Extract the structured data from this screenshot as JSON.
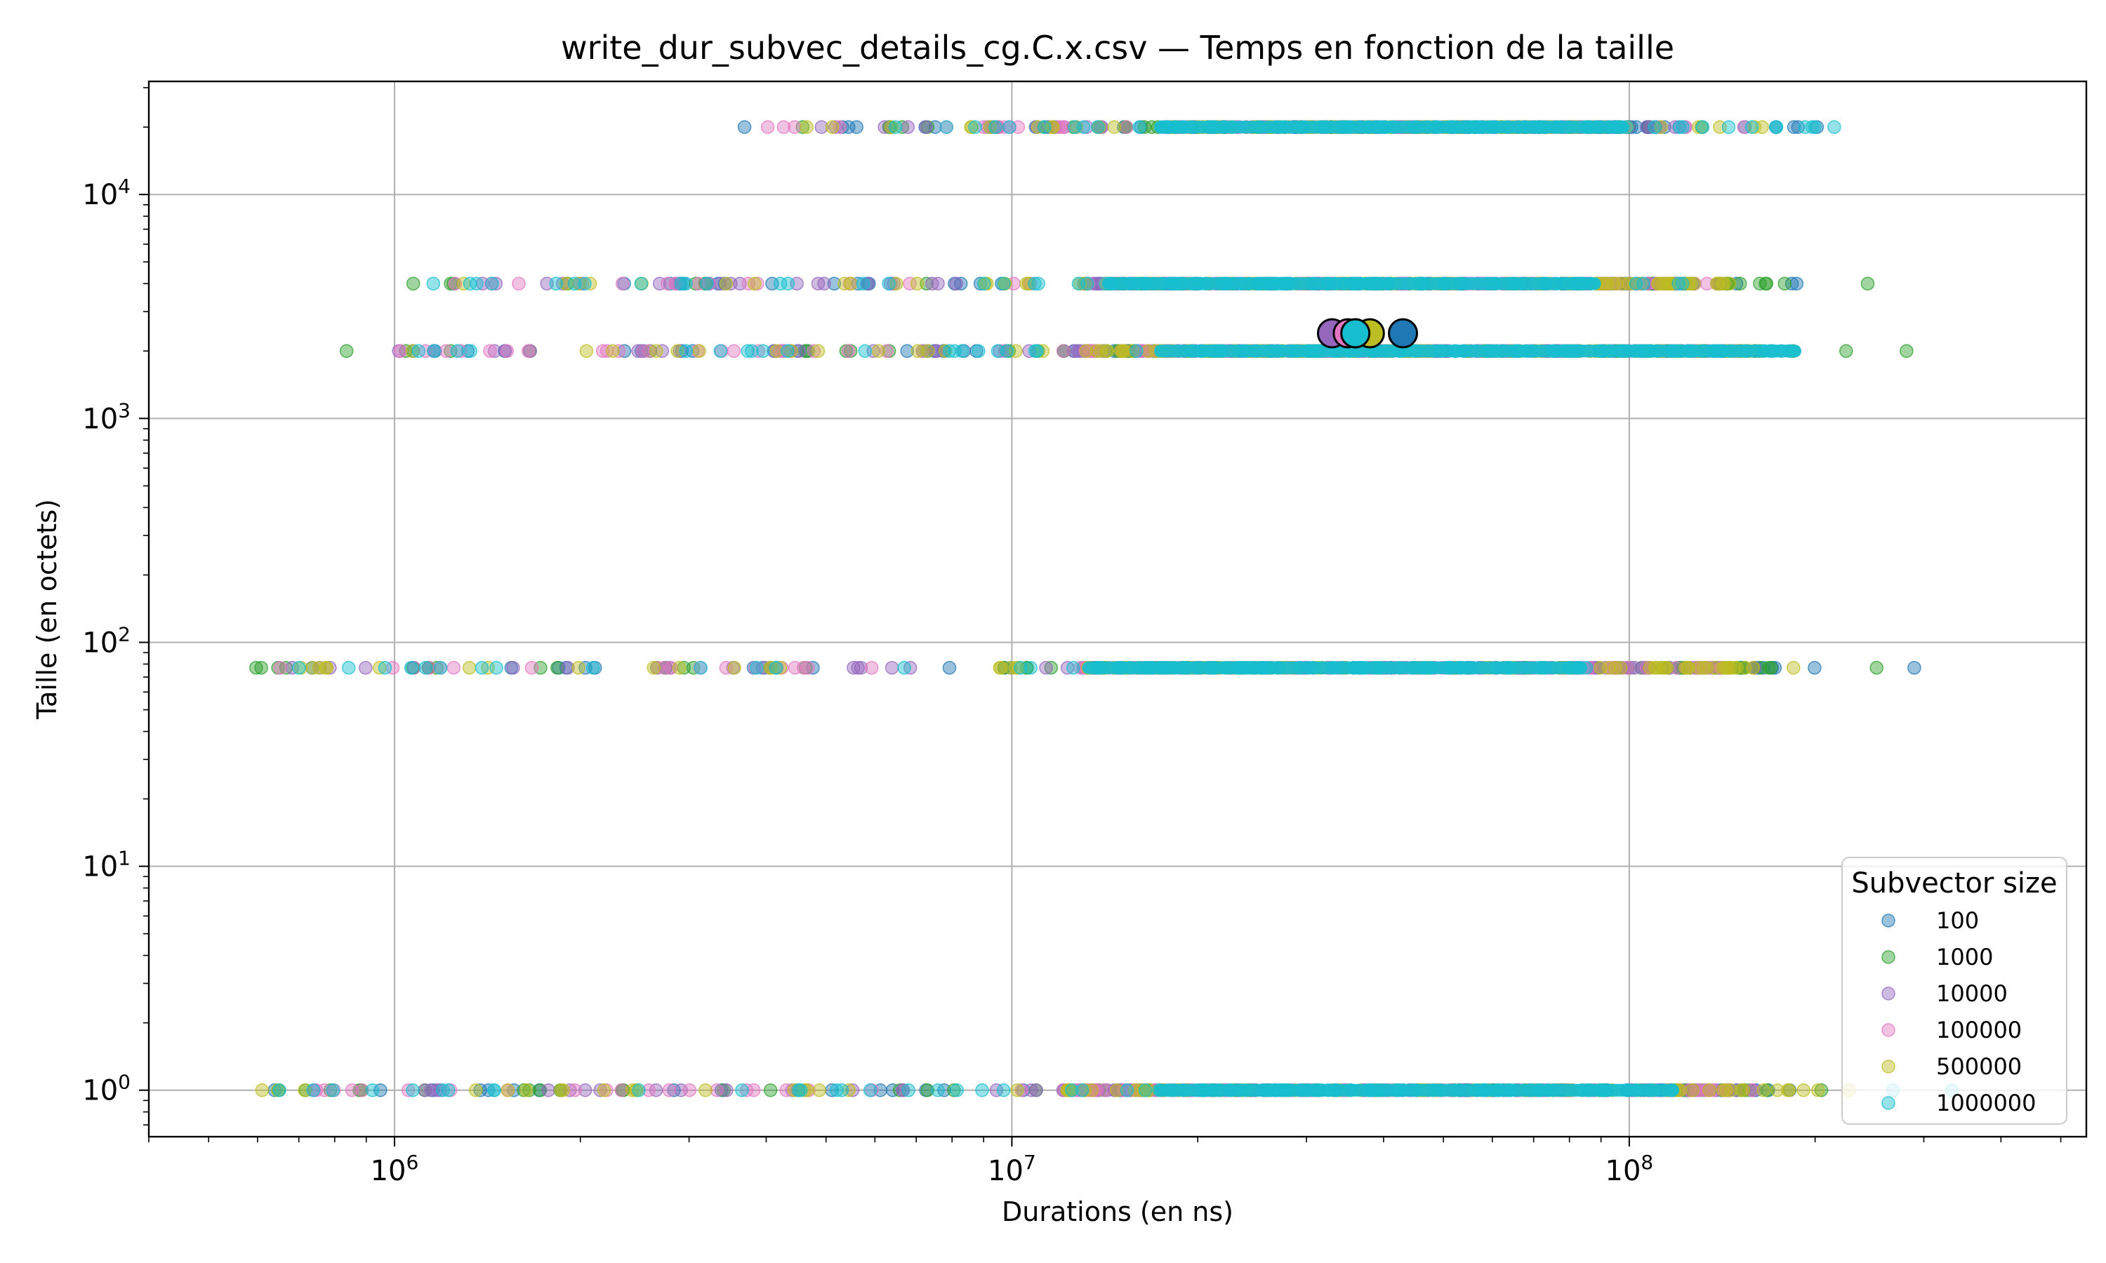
{
  "chart_data": {
    "type": "scatter",
    "title": "write_dur_subvec_details_cg.C.x.csv — Temps en fonction de la taille",
    "xlabel": "Durations (en ns)",
    "ylabel": "Taille (en octets)",
    "xscale": "log",
    "yscale": "log",
    "xlim": [
      400000,
      550000000
    ],
    "ylim": [
      0.62,
      32000
    ],
    "x_tick_labels": [
      {
        "value": 1000000,
        "base": "10",
        "exp": "6"
      },
      {
        "value": 10000000,
        "base": "10",
        "exp": "7"
      },
      {
        "value": 100000000,
        "base": "10",
        "exp": "8"
      }
    ],
    "y_tick_labels": [
      {
        "value": 1,
        "base": "10",
        "exp": "0"
      },
      {
        "value": 10,
        "base": "10",
        "exp": "1"
      },
      {
        "value": 100,
        "base": "10",
        "exp": "2"
      },
      {
        "value": 1000,
        "base": "10",
        "exp": "3"
      },
      {
        "value": 10000,
        "base": "10",
        "exp": "4"
      }
    ],
    "grid": true,
    "legend": {
      "title": "Subvector size",
      "position": "lower-right"
    },
    "series": [
      {
        "name": "100",
        "color": "#1f77b4",
        "bands": [
          {
            "y": 20000,
            "x_range": [
              3000000,
              220000000
            ],
            "dense_range": [
              18000000,
              110000000
            ]
          },
          {
            "y": 4000,
            "x_range": [
              1100000,
              200000000
            ],
            "dense_range": [
              13000000,
              150000000
            ]
          },
          {
            "y": 2000,
            "x_range": [
              1000000,
              190000000
            ],
            "dense_range": [
              12000000,
              160000000
            ]
          },
          {
            "y": 77,
            "x_range": [
              620000,
              390000000
            ],
            "dense_range": [
              13000000,
              170000000
            ]
          },
          {
            "y": 1,
            "x_range": [
              620000,
              300000000
            ],
            "dense_range": [
              12000000,
              170000000
            ]
          }
        ],
        "mean": {
          "x": 43000000,
          "y": 2400
        }
      },
      {
        "name": "1000",
        "color": "#2ca02c",
        "bands": [
          {
            "y": 20000,
            "x_range": [
              4500000,
              160000000
            ],
            "dense_range": [
              18000000,
              100000000
            ]
          },
          {
            "y": 4000,
            "x_range": [
              950000,
              260000000
            ],
            "dense_range": [
              13000000,
              150000000
            ]
          },
          {
            "y": 2000,
            "x_range": [
              800000,
              290000000
            ],
            "dense_range": [
              12000000,
              160000000
            ]
          },
          {
            "y": 77,
            "x_range": [
              530000,
              280000000
            ],
            "dense_range": [
              13000000,
              170000000
            ]
          },
          {
            "y": 1,
            "x_range": [
              620000,
              230000000
            ],
            "dense_range": [
              12000000,
              170000000
            ]
          }
        ],
        "mean": {
          "x": 36000000,
          "y": 2400
        }
      },
      {
        "name": "10000",
        "color": "#9467bd",
        "bands": [
          {
            "y": 20000,
            "x_range": [
              4500000,
              150000000
            ],
            "dense_range": [
              18000000,
              100000000
            ]
          },
          {
            "y": 4000,
            "x_range": [
              1100000,
              150000000
            ],
            "dense_range": [
              13000000,
              140000000
            ]
          },
          {
            "y": 2000,
            "x_range": [
              1000000,
              150000000
            ],
            "dense_range": [
              12000000,
              150000000
            ]
          },
          {
            "y": 77,
            "x_range": [
              650000,
              160000000
            ],
            "dense_range": [
              13000000,
              150000000
            ]
          },
          {
            "y": 1,
            "x_range": [
              600000,
              160000000
            ],
            "dense_range": [
              12000000,
              150000000
            ]
          }
        ],
        "mean": {
          "x": 33000000,
          "y": 2400
        }
      },
      {
        "name": "100000",
        "color": "#e377c2",
        "bands": [
          {
            "y": 20000,
            "x_range": [
              3600000,
              160000000
            ],
            "dense_range": [
              18000000,
              100000000
            ]
          },
          {
            "y": 4000,
            "x_range": [
              1100000,
              150000000
            ],
            "dense_range": [
              13000000,
              140000000
            ]
          },
          {
            "y": 2000,
            "x_range": [
              1000000,
              150000000
            ],
            "dense_range": [
              12000000,
              150000000
            ]
          },
          {
            "y": 77,
            "x_range": [
              650000,
              160000000
            ],
            "dense_range": [
              13000000,
              150000000
            ]
          },
          {
            "y": 1,
            "x_range": [
              600000,
              160000000
            ],
            "dense_range": [
              12000000,
              150000000
            ]
          }
        ],
        "mean": {
          "x": 35000000,
          "y": 2400
        }
      },
      {
        "name": "500000",
        "color": "#bcbd22",
        "bands": [
          {
            "y": 20000,
            "x_range": [
              3300000,
              170000000
            ],
            "dense_range": [
              18000000,
              100000000
            ]
          },
          {
            "y": 4000,
            "x_range": [
              900000,
              160000000
            ],
            "dense_range": [
              13000000,
              150000000
            ]
          },
          {
            "y": 2000,
            "x_range": [
              950000,
              160000000
            ],
            "dense_range": [
              12000000,
              160000000
            ]
          },
          {
            "y": 77,
            "x_range": [
              650000,
              280000000
            ],
            "dense_range": [
              13000000,
              170000000
            ]
          },
          {
            "y": 1,
            "x_range": [
              580000,
              240000000
            ],
            "dense_range": [
              12000000,
              170000000
            ]
          }
        ],
        "mean": {
          "x": 38000000,
          "y": 2400
        }
      },
      {
        "name": "1000000",
        "color": "#17becf",
        "bands": [
          {
            "y": 20000,
            "x_range": [
              5000000,
              225000000
            ],
            "dense_range": [
              17000000,
              100000000
            ]
          },
          {
            "y": 4000,
            "x_range": [
              1050000,
              130000000
            ],
            "dense_range": [
              14000000,
              90000000
            ]
          },
          {
            "y": 2000,
            "x_range": [
              1000000,
              190000000
            ],
            "dense_range": [
              17000000,
              190000000
            ]
          },
          {
            "y": 77,
            "x_range": [
              620000,
              90000000
            ],
            "dense_range": [
              13000000,
              85000000
            ]
          },
          {
            "y": 1,
            "x_range": [
              650000,
              500000000
            ],
            "dense_range": [
              17000000,
              120000000
            ]
          }
        ],
        "mean": {
          "x": 36000000,
          "y": 2400
        }
      }
    ]
  }
}
